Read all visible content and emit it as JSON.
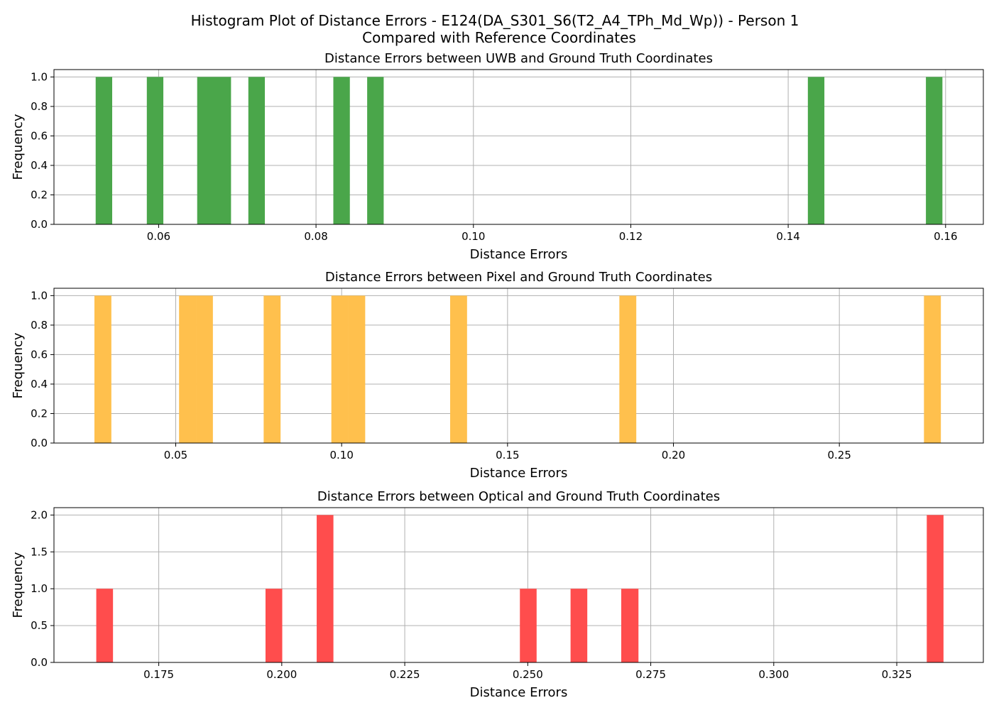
{
  "figure": {
    "title_line1": "Histogram Plot of Distance Errors - E124(DA_S301_S6(T2_A4_TPh_Md_Wp)) - Person 1",
    "title_line2": "Compared with Reference Coordinates"
  },
  "chart_data": [
    {
      "type": "bar",
      "title": "Distance Errors between UWB and Ground Truth Coordinates",
      "xlabel": "Distance Errors",
      "ylabel": "Frequency",
      "color": "#4aa64a",
      "xlim": [
        0.0467,
        0.1648
      ],
      "ylim": [
        0,
        1.05
      ],
      "grid": true,
      "xticks": [
        0.06,
        0.08,
        0.1,
        0.12,
        0.14,
        0.16
      ],
      "xtick_labels": [
        "0.06",
        "0.08",
        "0.10",
        "0.12",
        "0.14",
        "0.16"
      ],
      "yticks": [
        0.0,
        0.2,
        0.4,
        0.6,
        0.8,
        1.0
      ],
      "ytick_labels": [
        "0.0",
        "0.2",
        "0.4",
        "0.6",
        "0.8",
        "1.0"
      ],
      "bins": [
        {
          "x0": 0.052,
          "x1": 0.0541,
          "count": 1
        },
        {
          "x0": 0.0585,
          "x1": 0.0606,
          "count": 1
        },
        {
          "x0": 0.0649,
          "x1": 0.067,
          "count": 1
        },
        {
          "x0": 0.067,
          "x1": 0.0692,
          "count": 1
        },
        {
          "x0": 0.0714,
          "x1": 0.0735,
          "count": 1
        },
        {
          "x0": 0.0822,
          "x1": 0.0843,
          "count": 1
        },
        {
          "x0": 0.0865,
          "x1": 0.0886,
          "count": 1
        },
        {
          "x0": 0.1425,
          "x1": 0.1446,
          "count": 1
        },
        {
          "x0": 0.1575,
          "x1": 0.1596,
          "count": 1
        }
      ]
    },
    {
      "type": "bar",
      "title": "Distance Errors between Pixel and Ground Truth Coordinates",
      "xlabel": "Distance Errors",
      "ylabel": "Frequency",
      "color": "#ffc04d",
      "xlim": [
        0.0133,
        0.2934
      ],
      "ylim": [
        0,
        1.05
      ],
      "grid": true,
      "xticks": [
        0.05,
        0.1,
        0.15,
        0.2,
        0.25
      ],
      "xtick_labels": [
        "0.05",
        "0.10",
        "0.15",
        "0.20",
        "0.25"
      ],
      "yticks": [
        0.0,
        0.2,
        0.4,
        0.6,
        0.8,
        1.0
      ],
      "ytick_labels": [
        "0.0",
        "0.2",
        "0.4",
        "0.6",
        "0.8",
        "1.0"
      ],
      "bins": [
        {
          "x0": 0.0255,
          "x1": 0.0306,
          "count": 1
        },
        {
          "x0": 0.051,
          "x1": 0.0561,
          "count": 1
        },
        {
          "x0": 0.0561,
          "x1": 0.0612,
          "count": 1
        },
        {
          "x0": 0.0765,
          "x1": 0.0816,
          "count": 1
        },
        {
          "x0": 0.0969,
          "x1": 0.102,
          "count": 1
        },
        {
          "x0": 0.102,
          "x1": 0.1071,
          "count": 1
        },
        {
          "x0": 0.1327,
          "x1": 0.1378,
          "count": 1
        },
        {
          "x0": 0.1837,
          "x1": 0.1888,
          "count": 1
        },
        {
          "x0": 0.2755,
          "x1": 0.2806,
          "count": 1
        }
      ]
    },
    {
      "type": "bar",
      "title": "Distance Errors between Optical and Ground Truth Coordinates",
      "xlabel": "Distance Errors",
      "ylabel": "Frequency",
      "color": "#ff4d4d",
      "xlim": [
        0.1537,
        0.3426
      ],
      "ylim": [
        0,
        2.1
      ],
      "grid": true,
      "xticks": [
        0.175,
        0.2,
        0.225,
        0.25,
        0.275,
        0.3,
        0.325
      ],
      "xtick_labels": [
        "0.175",
        "0.200",
        "0.225",
        "0.250",
        "0.275",
        "0.300",
        "0.325"
      ],
      "yticks": [
        0.0,
        0.5,
        1.0,
        1.5,
        2.0
      ],
      "ytick_labels": [
        "0.0",
        "0.5",
        "1.0",
        "1.5",
        "2.0"
      ],
      "bins": [
        {
          "x0": 0.1623,
          "x1": 0.1657,
          "count": 1
        },
        {
          "x0": 0.1967,
          "x1": 0.2001,
          "count": 1
        },
        {
          "x0": 0.2071,
          "x1": 0.2105,
          "count": 2
        },
        {
          "x0": 0.2484,
          "x1": 0.2518,
          "count": 1
        },
        {
          "x0": 0.2587,
          "x1": 0.2621,
          "count": 1
        },
        {
          "x0": 0.269,
          "x1": 0.2725,
          "count": 1
        },
        {
          "x0": 0.3311,
          "x1": 0.3345,
          "count": 2
        }
      ]
    }
  ]
}
